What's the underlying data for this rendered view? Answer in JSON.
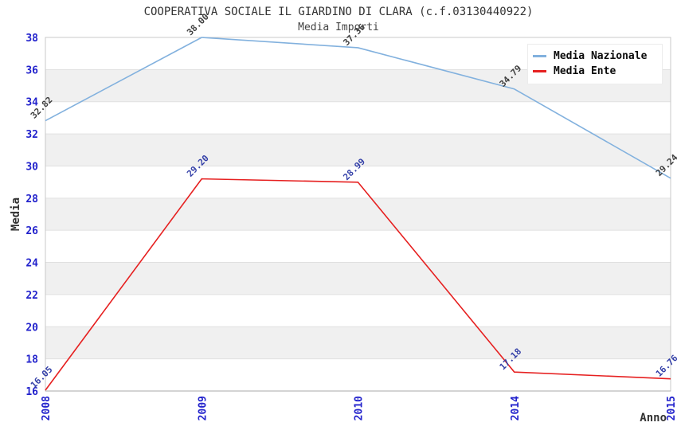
{
  "chart_data": {
    "type": "line",
    "title": "COOPERATIVA SOCIALE IL GIARDINO DI CLARA (c.f.03130440922)",
    "subtitle": "Media Importi",
    "xlabel": "Anno",
    "ylabel": "Media",
    "categories": [
      "2008",
      "2009",
      "2010",
      "2014",
      "2015"
    ],
    "series": [
      {
        "name": "Media Nazionale",
        "color": "#82B1DE",
        "label_color": "#3F3F3F",
        "values": [
          32.82,
          38.0,
          37.36,
          34.79,
          29.24
        ]
      },
      {
        "name": "Media Ente",
        "color": "#E62020",
        "label_color": "#3440A8",
        "values": [
          16.05,
          29.2,
          28.99,
          17.18,
          16.76
        ]
      }
    ],
    "ylim": [
      16,
      38
    ],
    "ytick_step": 2,
    "grid": true,
    "legend_position": "top-right",
    "band_colors": [
      "#ffffff",
      "#f0f0f0"
    ],
    "tick_color": "#2222CC",
    "axis_title_color": "#333333"
  }
}
